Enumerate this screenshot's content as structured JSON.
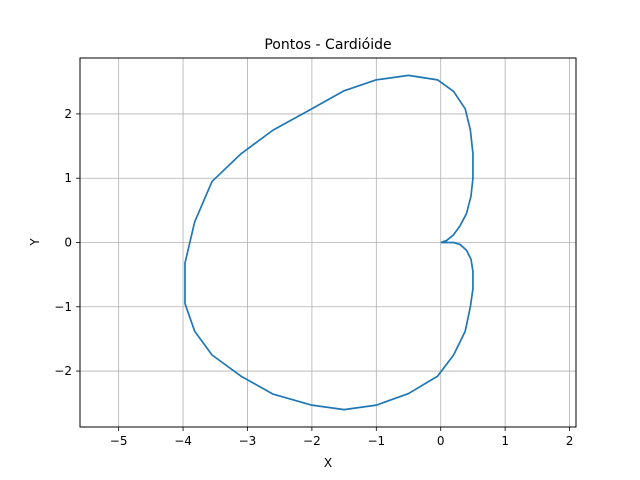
{
  "chart_data": {
    "type": "line",
    "title": "Pontos - Cardióide",
    "xlabel": "X",
    "ylabel": "Y",
    "xlim": [
      -5.6,
      2.1
    ],
    "ylim": [
      -2.87,
      2.87
    ],
    "xticks": [
      -5,
      -4,
      -3,
      -2,
      -1,
      0,
      1,
      2
    ],
    "yticks": [
      -2,
      -1,
      0,
      1,
      2
    ],
    "xtick_labels": [
      "−5",
      "−4",
      "−3",
      "−2",
      "−1",
      "0",
      "1",
      "2"
    ],
    "ytick_labels": [
      "−2",
      "−1",
      "0",
      "1",
      "2"
    ],
    "grid": true,
    "colors": {
      "line": "#1f77b4",
      "grid": "#b0b0b0",
      "axes": "#000000"
    },
    "series": [
      {
        "x": [
          0.0,
          0.09,
          0.2,
          0.3,
          0.4,
          0.47,
          0.5,
          0.5,
          0.46,
          0.38,
          0.2,
          -0.05,
          -0.5,
          -1.0,
          -1.5,
          -2.0,
          -2.6,
          -3.1,
          -3.55,
          -3.82,
          -3.97,
          -3.97,
          -3.82,
          -3.55,
          -3.1,
          -2.6,
          -2.0,
          -1.5,
          -1.0,
          -0.5,
          -0.05,
          0.2,
          0.38,
          0.46,
          0.5,
          0.5,
          0.47,
          0.4,
          0.3,
          0.2,
          0.09,
          0.0
        ],
        "y": [
          0.0,
          0.03,
          0.12,
          0.26,
          0.45,
          0.72,
          1.0,
          1.38,
          1.75,
          2.08,
          2.35,
          2.53,
          2.6,
          2.53,
          2.36,
          2.08,
          1.75,
          1.38,
          0.95,
          0.32,
          -0.32,
          -0.95,
          -1.38,
          -1.75,
          -2.08,
          -2.36,
          -2.53,
          -2.6,
          -2.53,
          -2.35,
          -2.08,
          -1.75,
          -1.38,
          -1.0,
          -0.72,
          -0.45,
          -0.26,
          -0.12,
          -0.03,
          0.0,
          0.0,
          0.0
        ]
      }
    ]
  }
}
